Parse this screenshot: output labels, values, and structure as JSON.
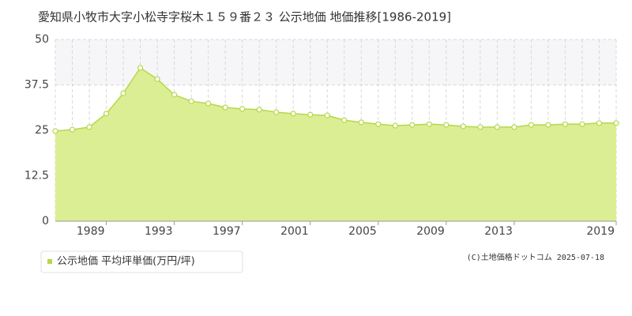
{
  "chart_data": {
    "type": "area",
    "title": "愛知県小牧市大字小松寺字桜木１５９番２３ 公示地価 地価推移[1986-2019]",
    "x": [
      1986,
      1987,
      1988,
      1989,
      1990,
      1991,
      1992,
      1993,
      1994,
      1995,
      1996,
      1997,
      1998,
      1999,
      2000,
      2001,
      2002,
      2003,
      2004,
      2005,
      2006,
      2007,
      2008,
      2009,
      2010,
      2011,
      2012,
      2013,
      2014,
      2015,
      2016,
      2017,
      2018,
      2019
    ],
    "series": [
      {
        "name": "公示地価 平均坪単価(万円/坪)",
        "color": "#b5d849",
        "fill": "#dcee93",
        "values": [
          24.8,
          25.2,
          25.9,
          29.6,
          35.2,
          42.2,
          39.1,
          34.8,
          33.0,
          32.4,
          31.3,
          30.9,
          30.7,
          30.0,
          29.6,
          29.3,
          29.1,
          27.8,
          27.2,
          26.7,
          26.3,
          26.5,
          26.7,
          26.5,
          26.1,
          25.9,
          25.9,
          25.9,
          26.5,
          26.5,
          26.7,
          26.7,
          27.0,
          27.0
        ]
      }
    ],
    "xlim": [
      1986,
      2019
    ],
    "xticks": [
      1989,
      1993,
      1997,
      2001,
      2005,
      2009,
      2013,
      2019
    ],
    "ylim": [
      0,
      50
    ],
    "yticks": [
      0,
      12.5,
      25,
      37.5,
      50
    ],
    "grid": true,
    "legend": "bottom-left",
    "footnote": "(C)土地価格ドットコム 2025-07-18"
  }
}
